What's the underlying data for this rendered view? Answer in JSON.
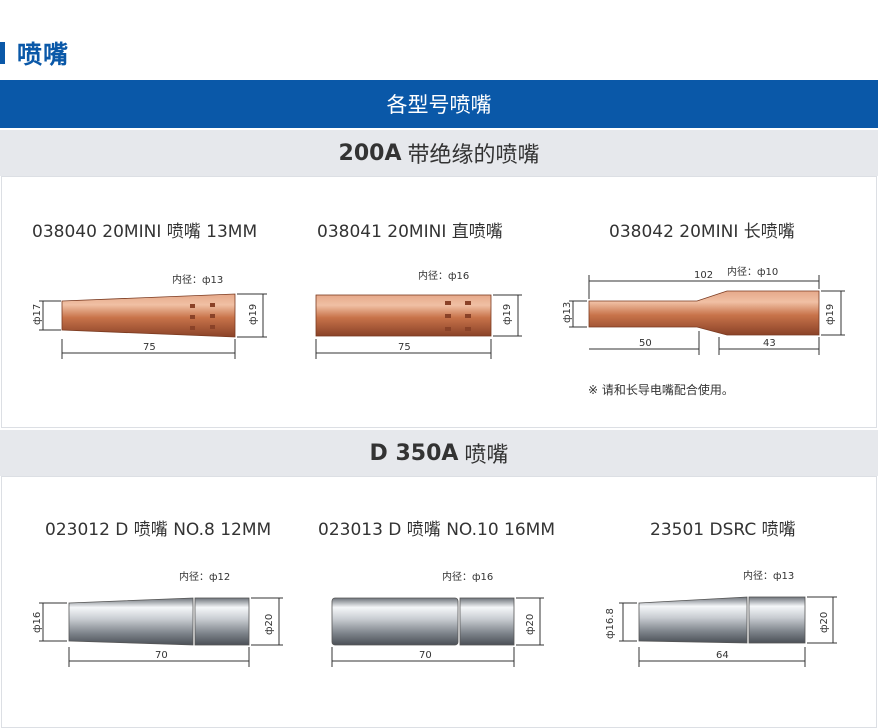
{
  "heading": "喷嘴",
  "banner": "各型号喷嘴",
  "sections": [
    {
      "title_strong": "200A",
      "title_rest": "带绝缘的喷嘴",
      "items": [
        {
          "title": "038040 20MINI 喷嘴 13MM",
          "inner": "内径：ф13",
          "left_dia": "ф17",
          "right_dia": "ф19",
          "length": "75"
        },
        {
          "title": "038041 20MINI 直喷嘴",
          "inner": "内径：ф16",
          "right_dia": "ф19",
          "length": "75"
        },
        {
          "title": "038042 20MINI 长喷嘴",
          "inner": "内径：ф10",
          "left_dia": "ф13",
          "right_dia": "ф19",
          "total": "102",
          "seg1": "50",
          "seg2": "43",
          "note": "※ 请和长导电嘴配合使用。"
        }
      ]
    },
    {
      "title_strong": "D 350A",
      "title_rest": "喷嘴",
      "items": [
        {
          "title": "023012 D 喷嘴 NO.8 12MM",
          "inner": "内径：ф12",
          "left_dia": "ф16",
          "right_dia": "ф20",
          "length": "70"
        },
        {
          "title": "023013 D 喷嘴 NO.10 16MM",
          "inner": "内径：ф16",
          "right_dia": "ф20",
          "length": "70"
        },
        {
          "title": "23501 DSRC 喷嘴",
          "inner": "内径：ф13",
          "left_dia": "ф16.8",
          "right_dia": "ф20",
          "length": "64"
        }
      ]
    }
  ],
  "colors": {
    "brand_blue": "#0a58a8",
    "section_grey": "#e6e8ec",
    "copper": "#c8734a",
    "chrome": "#b9bfc6"
  }
}
